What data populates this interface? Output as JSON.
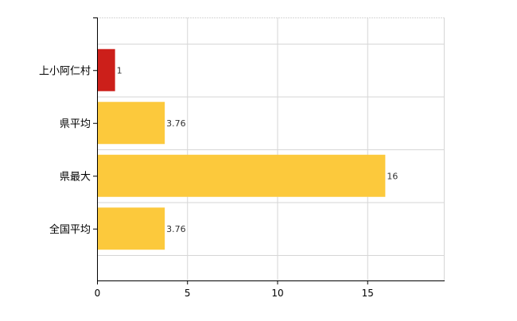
{
  "chart_data": {
    "type": "bar",
    "orientation": "horizontal",
    "categories": [
      "上小阿仁村",
      "県平均",
      "県最大",
      "全国平均"
    ],
    "values": [
      1,
      3.76,
      16,
      3.76
    ],
    "data_labels": [
      "1",
      "3.76",
      "16",
      "3.76"
    ],
    "bar_colors": [
      "#cc1f1a",
      "#fcc93c",
      "#fcc93c",
      "#fcc93c"
    ],
    "xlim": [
      0,
      19.25
    ],
    "x_ticks": [
      0,
      5,
      10,
      15
    ],
    "x_tick_labels": [
      "0",
      "5",
      "10",
      "15"
    ],
    "grid": true,
    "grid_color": "#d6d6d6",
    "axis_color": "#000000",
    "legend": "none"
  }
}
